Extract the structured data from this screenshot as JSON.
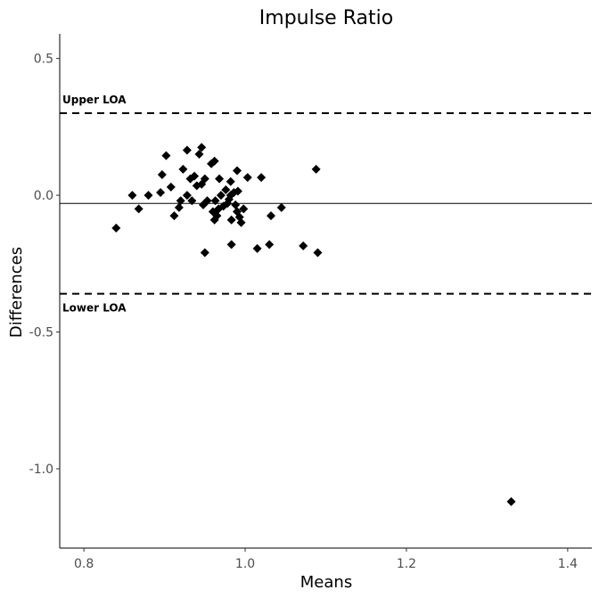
{
  "chart_data": {
    "type": "scatter",
    "title": "Impulse Ratio",
    "xlabel": "Means",
    "ylabel": "Differences",
    "xlim": [
      0.77,
      1.43
    ],
    "ylim": [
      -1.29,
      0.59
    ],
    "x_ticks": [
      0.8,
      1.0,
      1.2,
      1.4
    ],
    "y_ticks": [
      0.5,
      0.0,
      -0.5,
      -1.0
    ],
    "x_tick_labels": [
      "0.8",
      "1.0",
      "1.2",
      "1.4"
    ],
    "y_tick_labels": [
      "0.5",
      "0.0",
      "-0.5",
      "-1.0"
    ],
    "grid": false,
    "reference_lines": {
      "mean_difference": -0.03,
      "upper_loa": 0.3,
      "lower_loa": -0.36
    },
    "annotations": {
      "upper": "Upper LOA",
      "lower": "Lower LOA"
    },
    "points": [
      {
        "x": 0.84,
        "y": -0.12
      },
      {
        "x": 0.86,
        "y": 0.0
      },
      {
        "x": 0.868,
        "y": -0.05
      },
      {
        "x": 0.88,
        "y": 0.0
      },
      {
        "x": 0.895,
        "y": 0.01
      },
      {
        "x": 0.897,
        "y": 0.075
      },
      {
        "x": 0.902,
        "y": 0.145
      },
      {
        "x": 0.908,
        "y": 0.03
      },
      {
        "x": 0.912,
        "y": -0.075
      },
      {
        "x": 0.918,
        "y": -0.045
      },
      {
        "x": 0.92,
        "y": -0.02
      },
      {
        "x": 0.923,
        "y": 0.095
      },
      {
        "x": 0.928,
        "y": 0.165
      },
      {
        "x": 0.928,
        "y": 0.0
      },
      {
        "x": 0.932,
        "y": 0.06
      },
      {
        "x": 0.934,
        "y": -0.02
      },
      {
        "x": 0.937,
        "y": 0.07
      },
      {
        "x": 0.94,
        "y": 0.035
      },
      {
        "x": 0.943,
        "y": 0.15
      },
      {
        "x": 0.946,
        "y": 0.175
      },
      {
        "x": 0.946,
        "y": 0.04
      },
      {
        "x": 0.948,
        "y": -0.035
      },
      {
        "x": 0.95,
        "y": 0.06
      },
      {
        "x": 0.95,
        "y": -0.21
      },
      {
        "x": 0.953,
        "y": -0.02
      },
      {
        "x": 0.958,
        "y": 0.115
      },
      {
        "x": 0.96,
        "y": -0.06
      },
      {
        "x": 0.962,
        "y": 0.125
      },
      {
        "x": 0.962,
        "y": -0.09
      },
      {
        "x": 0.963,
        "y": -0.02
      },
      {
        "x": 0.965,
        "y": -0.075
      },
      {
        "x": 0.967,
        "y": -0.05
      },
      {
        "x": 0.968,
        "y": 0.06
      },
      {
        "x": 0.97,
        "y": 0.0
      },
      {
        "x": 0.973,
        "y": -0.04
      },
      {
        "x": 0.976,
        "y": 0.02
      },
      {
        "x": 0.978,
        "y": -0.03
      },
      {
        "x": 0.98,
        "y": -0.015
      },
      {
        "x": 0.982,
        "y": 0.0
      },
      {
        "x": 0.982,
        "y": 0.05
      },
      {
        "x": 0.983,
        "y": -0.09
      },
      {
        "x": 0.983,
        "y": -0.18
      },
      {
        "x": 0.986,
        "y": 0.01
      },
      {
        "x": 0.988,
        "y": -0.035
      },
      {
        "x": 0.99,
        "y": -0.06
      },
      {
        "x": 0.99,
        "y": 0.09
      },
      {
        "x": 0.991,
        "y": 0.015
      },
      {
        "x": 0.993,
        "y": -0.08
      },
      {
        "x": 0.995,
        "y": -0.1
      },
      {
        "x": 0.998,
        "y": -0.05
      },
      {
        "x": 1.003,
        "y": 0.065
      },
      {
        "x": 1.015,
        "y": -0.195
      },
      {
        "x": 1.02,
        "y": 0.065
      },
      {
        "x": 1.03,
        "y": -0.18
      },
      {
        "x": 1.032,
        "y": -0.075
      },
      {
        "x": 1.045,
        "y": -0.045
      },
      {
        "x": 1.072,
        "y": -0.185
      },
      {
        "x": 1.088,
        "y": 0.095
      },
      {
        "x": 1.09,
        "y": -0.21
      },
      {
        "x": 1.33,
        "y": -1.12
      }
    ]
  }
}
